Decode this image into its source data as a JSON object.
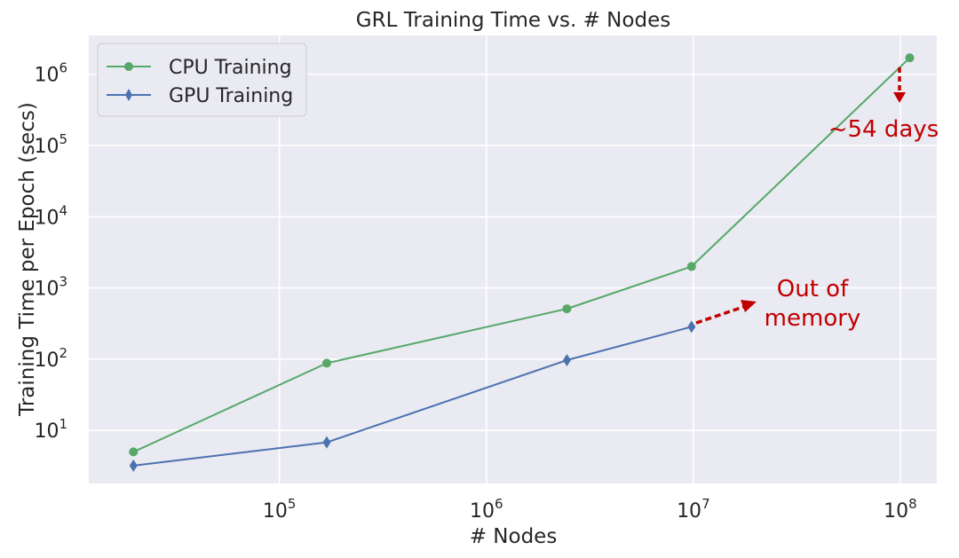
{
  "chart_data": {
    "type": "line",
    "title": "GRL Training Time vs. # Nodes",
    "xlabel": "# Nodes",
    "ylabel": "Training Time per Epoch (secs)",
    "xscale": "log",
    "yscale": "log",
    "xlim": [
      12000,
      150000000
    ],
    "ylim": [
      1.8,
      3500000
    ],
    "grid": true,
    "legend_position": "top-left",
    "x_ticks": [
      {
        "value": 100000,
        "base": "10",
        "exp": "5"
      },
      {
        "value": 1000000,
        "base": "10",
        "exp": "6"
      },
      {
        "value": 10000000,
        "base": "10",
        "exp": "7"
      },
      {
        "value": 100000000,
        "base": "10",
        "exp": "8"
      }
    ],
    "y_ticks": [
      {
        "value": 10,
        "base": "10",
        "exp": "1"
      },
      {
        "value": 100,
        "base": "10",
        "exp": "2"
      },
      {
        "value": 1000,
        "base": "10",
        "exp": "3"
      },
      {
        "value": 10000,
        "base": "10",
        "exp": "4"
      },
      {
        "value": 100000,
        "base": "10",
        "exp": "5"
      },
      {
        "value": 1000000,
        "base": "10",
        "exp": "6"
      }
    ],
    "series": [
      {
        "name": "CPU Training",
        "color": "#55a868",
        "marker": "circle",
        "x": [
          19717,
          169343,
          2449029,
          9800000,
          111000000
        ],
        "y": [
          5,
          88,
          510,
          2000,
          1700000
        ]
      },
      {
        "name": "GPU Training",
        "color": "#4c72b0",
        "marker": "diamond",
        "x": [
          19717,
          169343,
          2449029,
          9800000
        ],
        "y": [
          3.2,
          6.8,
          97,
          285
        ]
      }
    ],
    "annotations": [
      {
        "id": "days",
        "text": "~54 days",
        "color": "#c00000",
        "arrow": "down",
        "near": "CPU Training last point"
      },
      {
        "id": "oom",
        "lines": [
          "Out of",
          "memory"
        ],
        "color": "#c00000",
        "arrow": "right-up",
        "near": "GPU Training last point"
      }
    ],
    "colors": {
      "plot_background": "#eaeaf2",
      "grid": "#ffffff",
      "text": "#262626",
      "annotation": "#c00000"
    }
  }
}
